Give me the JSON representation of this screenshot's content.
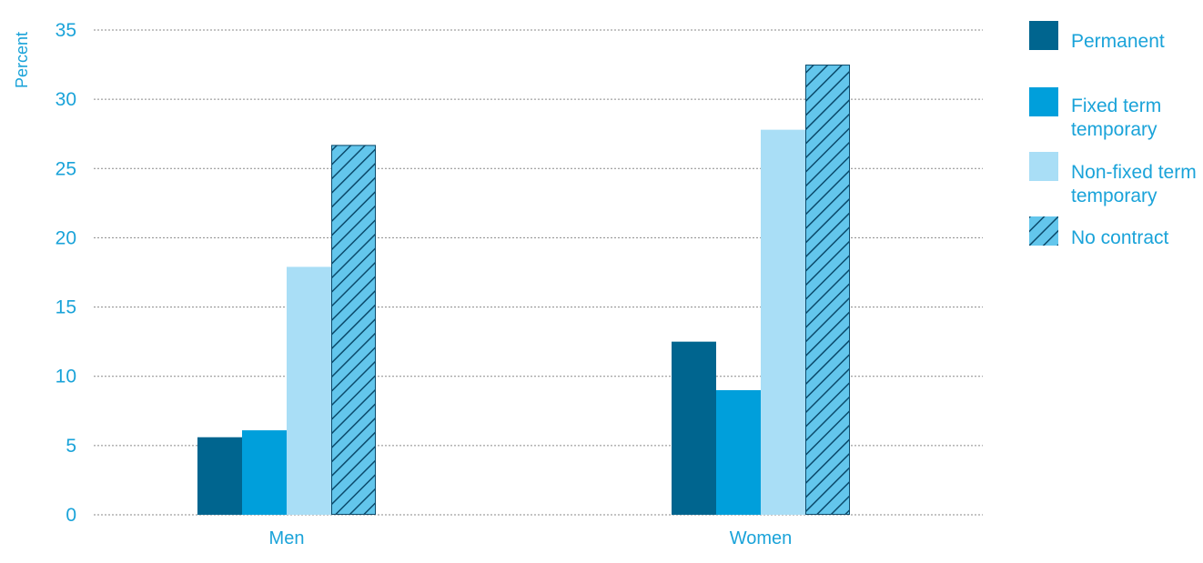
{
  "chart_data": {
    "type": "bar",
    "title": "",
    "xlabel": "",
    "ylabel": "Percent",
    "ylim": [
      0,
      35
    ],
    "yticks": [
      "0",
      "5",
      "10",
      "15",
      "20",
      "25",
      "30",
      "35"
    ],
    "grid": true,
    "legend_position": "right",
    "categories": [
      "Men",
      "Women"
    ],
    "series": [
      {
        "name": "Permanent",
        "values": [
          5.6,
          12.5
        ],
        "color": "#00658f",
        "hatch": false
      },
      {
        "name": "Fixed term temporary",
        "legend_lines": [
          "Fixed term",
          "temporary"
        ],
        "values": [
          6.1,
          9.0
        ],
        "color": "#009fdb",
        "hatch": false
      },
      {
        "name": "Non-fixed term temporary",
        "legend_lines": [
          "Non-fixed term",
          "temporary"
        ],
        "values": [
          17.9,
          27.8
        ],
        "color": "#a9def6",
        "hatch": false
      },
      {
        "name": "No contract",
        "legend_lines": [
          "No contract"
        ],
        "values": [
          26.7,
          32.5
        ],
        "color": "#63c6ec",
        "hatch": true,
        "hatch_color": "#0b4a6b"
      }
    ]
  }
}
